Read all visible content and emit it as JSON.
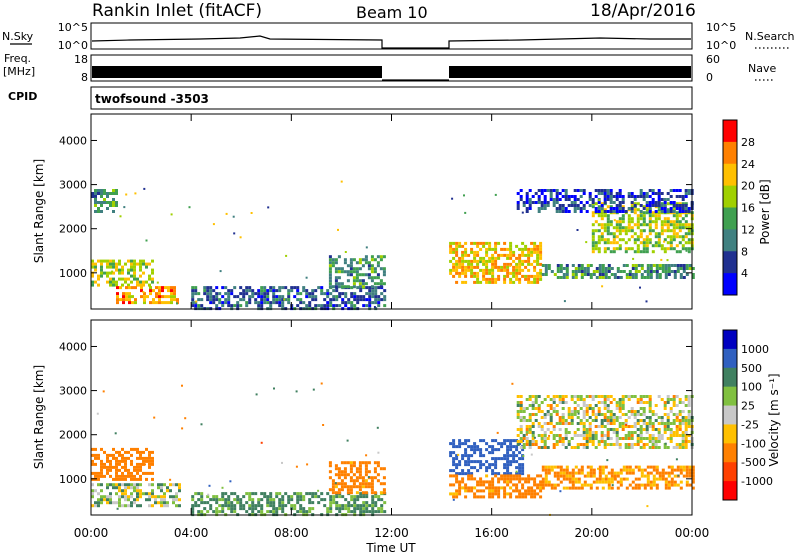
{
  "header": {
    "station": "Rankin Inlet (fitACF)",
    "beam": "Beam 10",
    "date": "18/Apr/2016"
  },
  "params": {
    "nsky_label": "N.Sky",
    "nsky_ticks": [
      "10^5",
      "10^0"
    ],
    "nsearch_label": "N.Search",
    "nsearch_ticks": [
      "10^5",
      "10^0"
    ],
    "freq_label_1": "Freq.",
    "freq_label_2": "[MHz]",
    "freq_ticks": [
      "18",
      "8"
    ],
    "nave_label": "Nave",
    "nave_ticks": [
      "60",
      "0"
    ],
    "cpid_label": "CPID",
    "cpid_value": "twofsound -3503"
  },
  "time_ticks": [
    "00:00",
    "04:00",
    "08:00",
    "12:00",
    "16:00",
    "20:00",
    "00:00"
  ],
  "xlabel": "Time UT",
  "chart_data": [
    {
      "type": "heatmap",
      "panel": "power",
      "ylabel": "Slant Range [km]",
      "yticks": [
        "1000",
        "2000",
        "3000",
        "4000"
      ],
      "ylim": [
        180,
        4600
      ],
      "xlim": [
        0,
        24
      ],
      "data_gap_hours": [
        11.75,
        14.3
      ],
      "colorbar": {
        "label": "Power [dB]",
        "ticks": [
          "28",
          "24",
          "20",
          "16",
          "12",
          "8",
          "4"
        ],
        "colors": [
          "#ff0000",
          "#ff8000",
          "#ffc000",
          "#a0d000",
          "#40a050",
          "#408080",
          "#203090",
          "#0000ff"
        ]
      },
      "regions": [
        {
          "t0": 0.0,
          "t1": 2.5,
          "r0": 700,
          "r1": 1300,
          "level": 18
        },
        {
          "t0": 1.0,
          "t1": 3.5,
          "r0": 300,
          "r1": 700,
          "level": 24
        },
        {
          "t0": 0.0,
          "t1": 1.0,
          "r0": 2400,
          "r1": 2900,
          "level": 12
        },
        {
          "t0": 4.0,
          "t1": 11.7,
          "r0": 200,
          "r1": 700,
          "level": 8
        },
        {
          "t0": 9.5,
          "t1": 11.7,
          "r0": 700,
          "r1": 1400,
          "level": 12
        },
        {
          "t0": 14.3,
          "t1": 18.0,
          "r0": 800,
          "r1": 1700,
          "level": 22
        },
        {
          "t0": 18.0,
          "t1": 24.0,
          "r0": 900,
          "r1": 1200,
          "level": 12
        },
        {
          "t0": 20.0,
          "t1": 24.0,
          "r0": 1500,
          "r1": 2600,
          "level": 18
        },
        {
          "t0": 17.0,
          "t1": 24.0,
          "r0": 2400,
          "r1": 2900,
          "level": 6
        }
      ]
    },
    {
      "type": "heatmap",
      "panel": "velocity",
      "ylabel": "Slant Range [km]",
      "yticks": [
        "1000",
        "2000",
        "3000",
        "4000"
      ],
      "ylim": [
        180,
        4600
      ],
      "xlim": [
        0,
        24
      ],
      "data_gap_hours": [
        11.75,
        14.3
      ],
      "colorbar": {
        "label": "Velocity [m s⁻¹]",
        "ticks": [
          "1000",
          "500",
          "100",
          "25",
          "-25",
          "-100",
          "-500",
          "-1000"
        ],
        "colors": [
          "#0000c0",
          "#3060c0",
          "#408060",
          "#80c040",
          "#c8c8c8",
          "#ffc000",
          "#ff8000",
          "#ff4000",
          "#ff0000"
        ]
      },
      "regions": [
        {
          "t0": 0.0,
          "t1": 2.5,
          "r0": 1000,
          "r1": 1700,
          "velocity": -300
        },
        {
          "t0": 0.0,
          "t1": 3.5,
          "r0": 400,
          "r1": 900,
          "velocity": 50
        },
        {
          "t0": 4.0,
          "t1": 11.7,
          "r0": 200,
          "r1": 700,
          "velocity": 150
        },
        {
          "t0": 9.5,
          "t1": 11.7,
          "r0": 700,
          "r1": 1400,
          "velocity": -200
        },
        {
          "t0": 14.3,
          "t1": 17.2,
          "r0": 1100,
          "r1": 1900,
          "velocity": 800
        },
        {
          "t0": 14.3,
          "t1": 18.0,
          "r0": 600,
          "r1": 1100,
          "velocity": -200
        },
        {
          "t0": 18.0,
          "t1": 24.0,
          "r0": 800,
          "r1": 1300,
          "velocity": -150
        },
        {
          "t0": 17.0,
          "t1": 24.0,
          "r0": 1700,
          "r1": 2900,
          "velocity": 0
        }
      ]
    }
  ]
}
